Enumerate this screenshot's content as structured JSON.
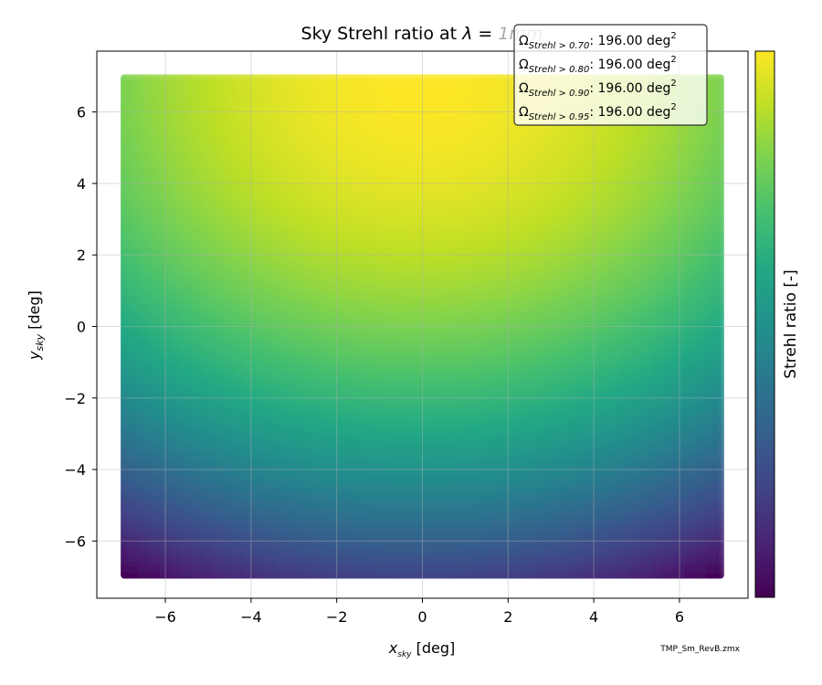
{
  "chart_data": {
    "type": "heatmap",
    "title_prefix": "Sky Strehl ratio at ",
    "title_lambda": "λ",
    "title_eq": " = ",
    "title_value": "1mm",
    "xlabel": {
      "var": "x",
      "sub": "sky",
      "unit": " [deg]"
    },
    "ylabel": {
      "var": "y",
      "sub": "sky",
      "unit": " [deg]"
    },
    "xlim": [
      -7.6,
      7.6
    ],
    "ylim": [
      -7.6,
      7.7
    ],
    "xticks": [
      -6,
      -4,
      -2,
      0,
      2,
      4,
      6
    ],
    "yticks": [
      -6,
      -4,
      -2,
      0,
      2,
      4,
      6
    ],
    "xtick_labels": [
      "−6",
      "−4",
      "−2",
      "0",
      "2",
      "4",
      "6"
    ],
    "ytick_labels": [
      "−6",
      "−4",
      "−2",
      "0",
      "2",
      "4",
      "6"
    ],
    "grid": true,
    "data_extent": {
      "x": [
        -7,
        7
      ],
      "y": [
        -7,
        7
      ]
    },
    "pattern": "Strehl ratio is highest near (0, 7) at the top center and lowest at the bottom corners (±7, −7)",
    "colormap": "viridis",
    "colorbar_label": "Strehl ratio [-]",
    "annotations": [
      {
        "symbol": "Ω",
        "sub": "Strehl > 0.70",
        "value": ": 196.00 deg",
        "sup": "2"
      },
      {
        "symbol": "Ω",
        "sub": "Strehl > 0.80",
        "value": ": 196.00 deg",
        "sup": "2"
      },
      {
        "symbol": "Ω",
        "sub": "Strehl > 0.90",
        "value": ": 196.00 deg",
        "sup": "2"
      },
      {
        "symbol": "Ω",
        "sub": "Strehl > 0.95",
        "value": ": 196.00 deg",
        "sup": "2"
      }
    ],
    "footnote": "TMP_Sm_RevB.zmx"
  }
}
